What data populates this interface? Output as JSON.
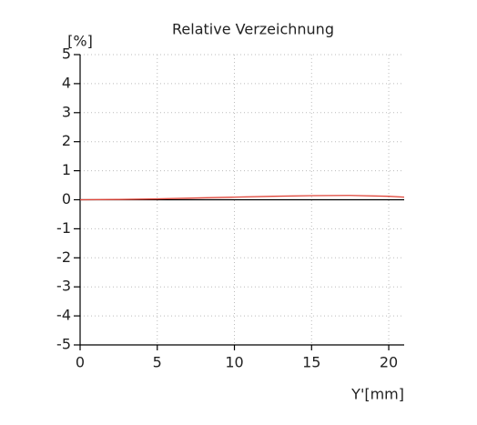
{
  "chart_data": {
    "type": "line",
    "title": "Relative Verzeichnung",
    "y_label": "[%]",
    "x_label": "Y'[mm]",
    "x": [
      0,
      2.5,
      5,
      7.5,
      10,
      12.5,
      15,
      17.5,
      20,
      21
    ],
    "series": [
      {
        "name": "Relative Verzeichnung",
        "color": "#e0463a",
        "values": [
          0,
          0.01,
          0.03,
          0.06,
          0.09,
          0.12,
          0.14,
          0.15,
          0.12,
          0.09
        ]
      }
    ],
    "xlim": [
      0,
      21
    ],
    "xticks": [
      0,
      5,
      10,
      15,
      20
    ],
    "ylim": [
      -5,
      5
    ],
    "yticks": [
      -5,
      -4,
      -3,
      -2,
      -1,
      0,
      1,
      2,
      3,
      4,
      5
    ],
    "grid": true
  }
}
